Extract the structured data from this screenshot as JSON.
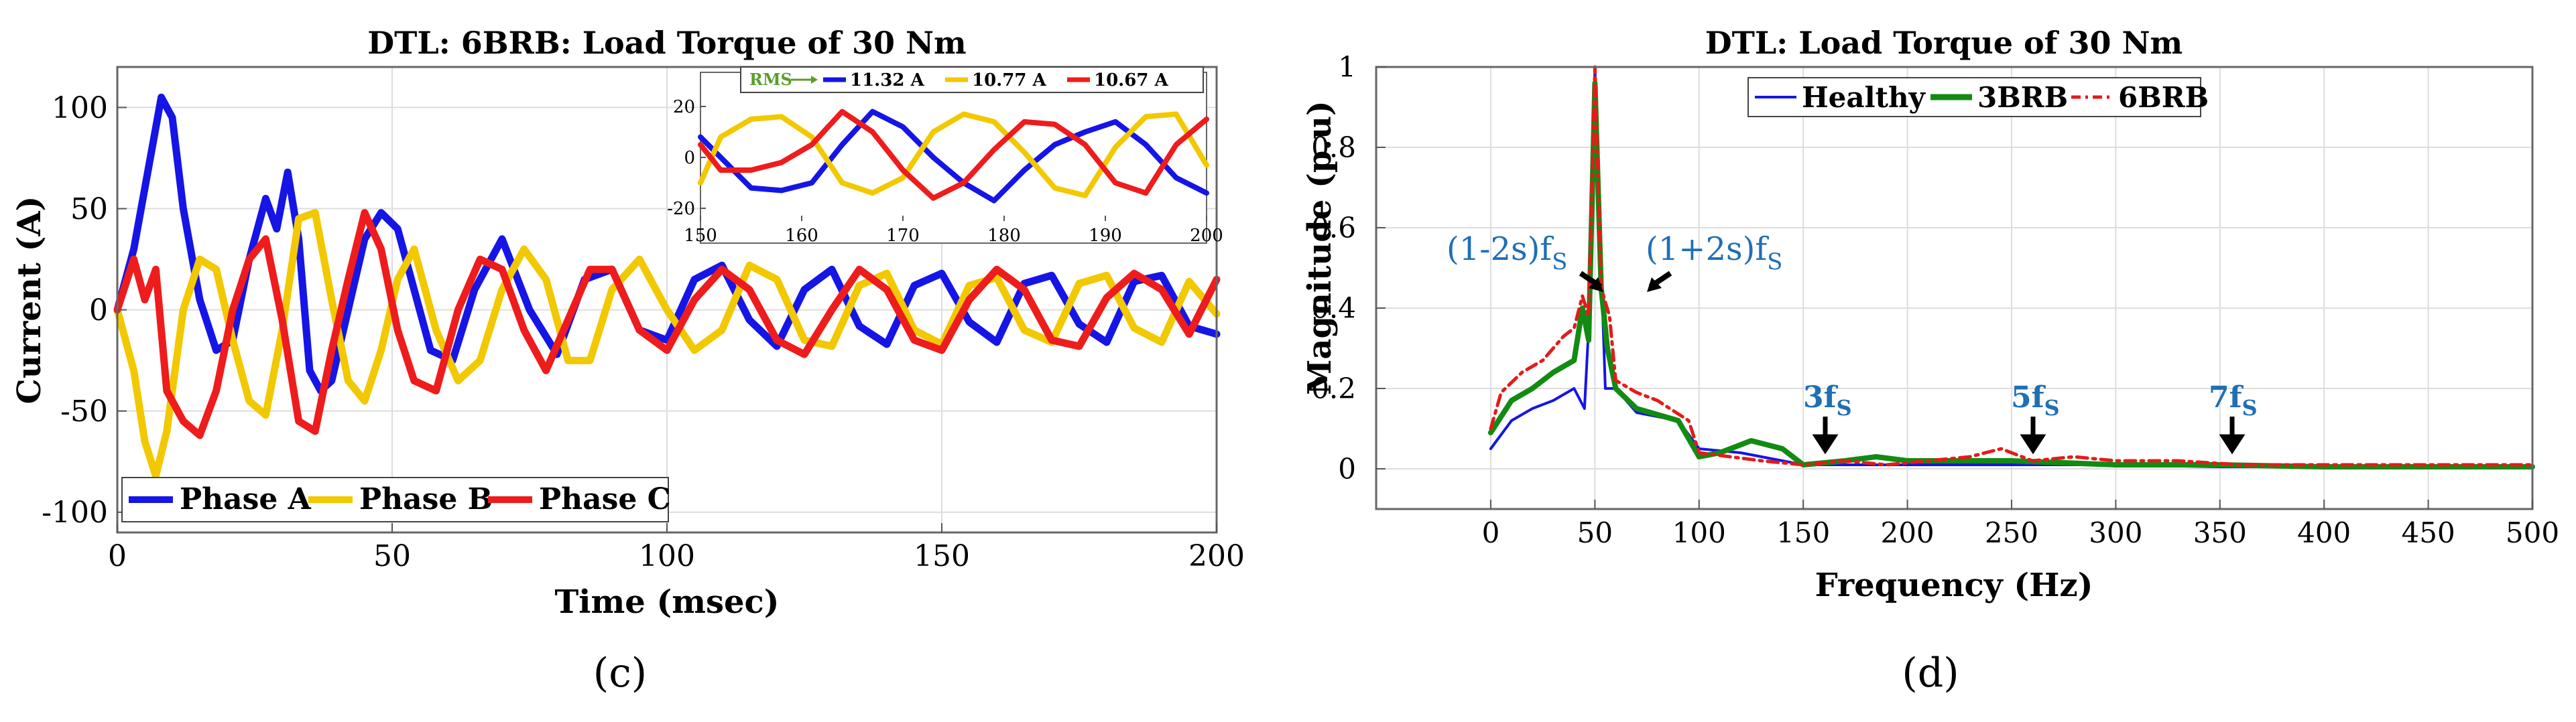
{
  "chart_data": [
    {
      "type": "line",
      "panel_label": "(c)",
      "title": "DTL: 6BRB: Load Torque of 30 Nm",
      "xlabel": "Time (msec)",
      "ylabel": "Current (A)",
      "xlim": [
        0,
        200
      ],
      "ylim": [
        -110,
        120
      ],
      "xticks": [
        0,
        50,
        100,
        150,
        200
      ],
      "yticks": [
        -100,
        -50,
        0,
        50,
        100
      ],
      "grid": true,
      "legend_position": "bottom-left",
      "series": [
        {
          "name": "Phase A",
          "color": "#1515e6",
          "x": [
            0,
            3,
            6,
            8,
            10,
            12,
            15,
            18,
            21,
            24,
            27,
            29,
            31,
            33,
            35,
            37,
            39,
            42,
            45,
            48,
            51,
            54,
            57,
            61,
            65,
            70,
            75,
            80,
            85,
            90,
            95,
            100,
            105,
            110,
            115,
            120,
            125,
            130,
            135,
            140,
            145,
            150,
            155,
            160,
            165,
            170,
            175,
            180,
            185,
            190,
            195,
            200
          ],
          "values": [
            0,
            30,
            75,
            105,
            95,
            50,
            5,
            -20,
            -15,
            25,
            55,
            40,
            68,
            35,
            -30,
            -40,
            -35,
            0,
            35,
            48,
            40,
            10,
            -20,
            -25,
            10,
            35,
            0,
            -22,
            15,
            20,
            -10,
            -15,
            15,
            22,
            -5,
            -18,
            10,
            20,
            -8,
            -17,
            12,
            18,
            -6,
            -16,
            13,
            17,
            -7,
            -16,
            14,
            17,
            -8,
            -12
          ]
        },
        {
          "name": "Phase B",
          "color": "#f2c800",
          "x": [
            0,
            3,
            5,
            7,
            9,
            12,
            15,
            18,
            21,
            24,
            27,
            30,
            33,
            36,
            39,
            42,
            45,
            48,
            51,
            54,
            58,
            62,
            66,
            70,
            74,
            78,
            82,
            86,
            90,
            95,
            100,
            105,
            110,
            115,
            120,
            125,
            130,
            135,
            140,
            145,
            150,
            155,
            160,
            165,
            170,
            175,
            180,
            185,
            190,
            195,
            200
          ],
          "values": [
            0,
            -30,
            -65,
            -82,
            -60,
            0,
            25,
            20,
            -15,
            -45,
            -52,
            -10,
            45,
            48,
            5,
            -35,
            -45,
            -20,
            15,
            30,
            -10,
            -35,
            -25,
            10,
            30,
            15,
            -25,
            -25,
            10,
            25,
            0,
            -20,
            -10,
            22,
            15,
            -15,
            -18,
            12,
            18,
            -10,
            -17,
            12,
            16,
            -10,
            -16,
            13,
            17,
            -9,
            -16,
            14,
            -2
          ]
        },
        {
          "name": "Phase C",
          "color": "#ee1c1c",
          "x": [
            0,
            3,
            5,
            7,
            9,
            12,
            15,
            18,
            21,
            24,
            27,
            30,
            33,
            36,
            39,
            42,
            45,
            48,
            51,
            54,
            58,
            62,
            66,
            70,
            74,
            78,
            82,
            86,
            90,
            95,
            100,
            105,
            110,
            115,
            120,
            125,
            130,
            135,
            140,
            145,
            150,
            155,
            160,
            165,
            170,
            175,
            180,
            185,
            190,
            195,
            200
          ],
          "values": [
            0,
            25,
            5,
            20,
            -40,
            -55,
            -62,
            -40,
            0,
            25,
            35,
            -5,
            -55,
            -60,
            -20,
            15,
            48,
            30,
            -10,
            -35,
            -40,
            0,
            25,
            20,
            -10,
            -30,
            -5,
            20,
            20,
            -10,
            -20,
            5,
            20,
            10,
            -15,
            -22,
            0,
            20,
            10,
            -15,
            -20,
            5,
            20,
            10,
            -15,
            -18,
            6,
            18,
            10,
            -12,
            15
          ]
        }
      ],
      "inset": {
        "xlim": [
          150,
          200
        ],
        "ylim": [
          -25,
          25
        ],
        "xticks": [
          150,
          160,
          170,
          180,
          190,
          200
        ],
        "yticks": [
          -20,
          0,
          20
        ],
        "rms_label": "RMS",
        "rms_values": [
          "11.32 A",
          "10.77 A",
          "10.67 A"
        ],
        "series": [
          {
            "name": "Phase A",
            "color": "#1515e6",
            "x": [
              150,
              152,
              155,
              158,
              161,
              164,
              167,
              170,
              173,
              176,
              179,
              182,
              185,
              188,
              191,
              194,
              197,
              200
            ],
            "values": [
              8,
              0,
              -12,
              -13,
              -10,
              5,
              18,
              12,
              0,
              -10,
              -17,
              -5,
              5,
              10,
              14,
              5,
              -8,
              -14
            ]
          },
          {
            "name": "Phase B",
            "color": "#f2c800",
            "x": [
              150,
              152,
              155,
              158,
              161,
              164,
              167,
              170,
              173,
              176,
              179,
              182,
              185,
              188,
              191,
              194,
              197,
              200
            ],
            "values": [
              -10,
              8,
              15,
              16,
              8,
              -10,
              -14,
              -8,
              10,
              17,
              14,
              2,
              -12,
              -15,
              4,
              16,
              17,
              -3
            ]
          },
          {
            "name": "Phase C",
            "color": "#ee1c1c",
            "x": [
              150,
              152,
              155,
              158,
              161,
              164,
              167,
              170,
              173,
              176,
              179,
              182,
              185,
              188,
              191,
              194,
              197,
              200
            ],
            "values": [
              5,
              -5,
              -5,
              -2,
              5,
              18,
              10,
              -5,
              -16,
              -10,
              3,
              14,
              13,
              5,
              -10,
              -14,
              5,
              15
            ]
          }
        ]
      }
    },
    {
      "type": "line",
      "panel_label": "(d)",
      "title": "DTL: Load Torque of 30 Nm",
      "xlabel": "Frequency (Hz)",
      "ylabel": "Magnitude (p.u)",
      "xlim": [
        -55,
        500
      ],
      "ylim": [
        -0.1,
        1
      ],
      "xticks": [
        0,
        50,
        100,
        150,
        200,
        250,
        300,
        350,
        400,
        450,
        500
      ],
      "yticks": [
        0,
        0.2,
        0.4,
        0.6,
        0.8,
        1
      ],
      "ytick_labels": [
        "0",
        "0.2",
        "0.4",
        "0.6",
        "0.8",
        "1"
      ],
      "grid": true,
      "legend_position": "top-center",
      "series": [
        {
          "name": "Healthy",
          "color": "#1515e6",
          "x": [
            0,
            10,
            20,
            30,
            40,
            45,
            47,
            50,
            53,
            55,
            60,
            70,
            90,
            100,
            120,
            150,
            200,
            250,
            300,
            350,
            400,
            450,
            500
          ],
          "values": [
            0.05,
            0.12,
            0.15,
            0.17,
            0.2,
            0.15,
            0.35,
            1,
            0.5,
            0.2,
            0.2,
            0.14,
            0.12,
            0.05,
            0.04,
            0.01,
            0.01,
            0.01,
            0.01,
            0.005,
            0.005,
            0.005,
            0.005
          ]
        },
        {
          "name": "3BRB",
          "color": "#128b12",
          "x": [
            0,
            10,
            20,
            30,
            40,
            44,
            47,
            50,
            53,
            56,
            60,
            70,
            90,
            100,
            110,
            125,
            140,
            150,
            170,
            185,
            200,
            250,
            300,
            350,
            400,
            450,
            500
          ],
          "values": [
            0.09,
            0.17,
            0.2,
            0.24,
            0.27,
            0.4,
            0.32,
            0.96,
            0.45,
            0.3,
            0.2,
            0.15,
            0.12,
            0.03,
            0.04,
            0.07,
            0.05,
            0.01,
            0.02,
            0.03,
            0.02,
            0.02,
            0.01,
            0.01,
            0.005,
            0.005,
            0.005
          ]
        },
        {
          "name": "6BRB",
          "color": "#e31b1b",
          "x": [
            0,
            5,
            15,
            25,
            35,
            40,
            44,
            47,
            50,
            53,
            57,
            60,
            70,
            80,
            95,
            100,
            115,
            130,
            150,
            170,
            190,
            210,
            230,
            245,
            260,
            280,
            300,
            330,
            360,
            400,
            450,
            500
          ],
          "values": [
            0.1,
            0.19,
            0.24,
            0.27,
            0.33,
            0.35,
            0.43,
            0.38,
            1,
            0.45,
            0.38,
            0.22,
            0.19,
            0.17,
            0.12,
            0.04,
            0.03,
            0.02,
            0.01,
            0.02,
            0.01,
            0.02,
            0.03,
            0.05,
            0.02,
            0.03,
            0.02,
            0.02,
            0.01,
            0.01,
            0.01,
            0.01
          ]
        }
      ],
      "annotations": [
        {
          "text": "(1-2s)f",
          "subscript": "S",
          "x": 40,
          "y": 0.42
        },
        {
          "text": "(1+2s)f",
          "subscript": "S",
          "x": 60,
          "y": 0.42
        },
        {
          "text": "3f",
          "subscript": "S",
          "x": 150,
          "y": 0.04
        },
        {
          "text": "5f",
          "subscript": "S",
          "x": 250,
          "y": 0.04
        },
        {
          "text": "7f",
          "subscript": "S",
          "x": 350,
          "y": 0.04
        }
      ]
    }
  ]
}
